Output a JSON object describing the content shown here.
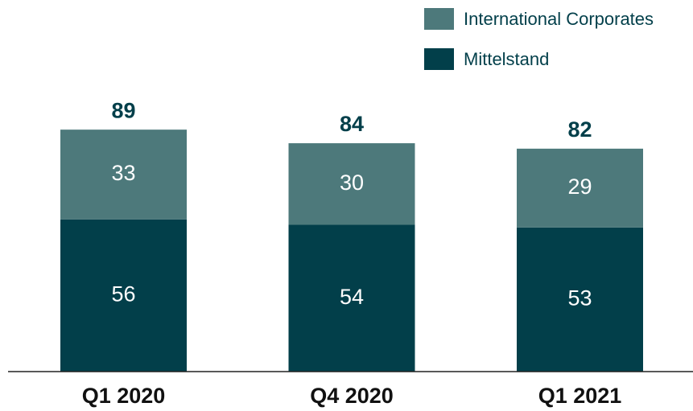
{
  "chart_data": {
    "type": "stacked_bar",
    "categories": [
      "Q1 2020",
      "Q4 2020",
      "Q1 2021"
    ],
    "series": [
      {
        "name": "Mittelstand",
        "color": "#023f4a",
        "values": [
          56,
          54,
          53
        ]
      },
      {
        "name": "International Corporates",
        "color": "#4d797b",
        "values": [
          33,
          30,
          29
        ]
      }
    ],
    "totals": [
      89,
      84,
      82
    ]
  }
}
